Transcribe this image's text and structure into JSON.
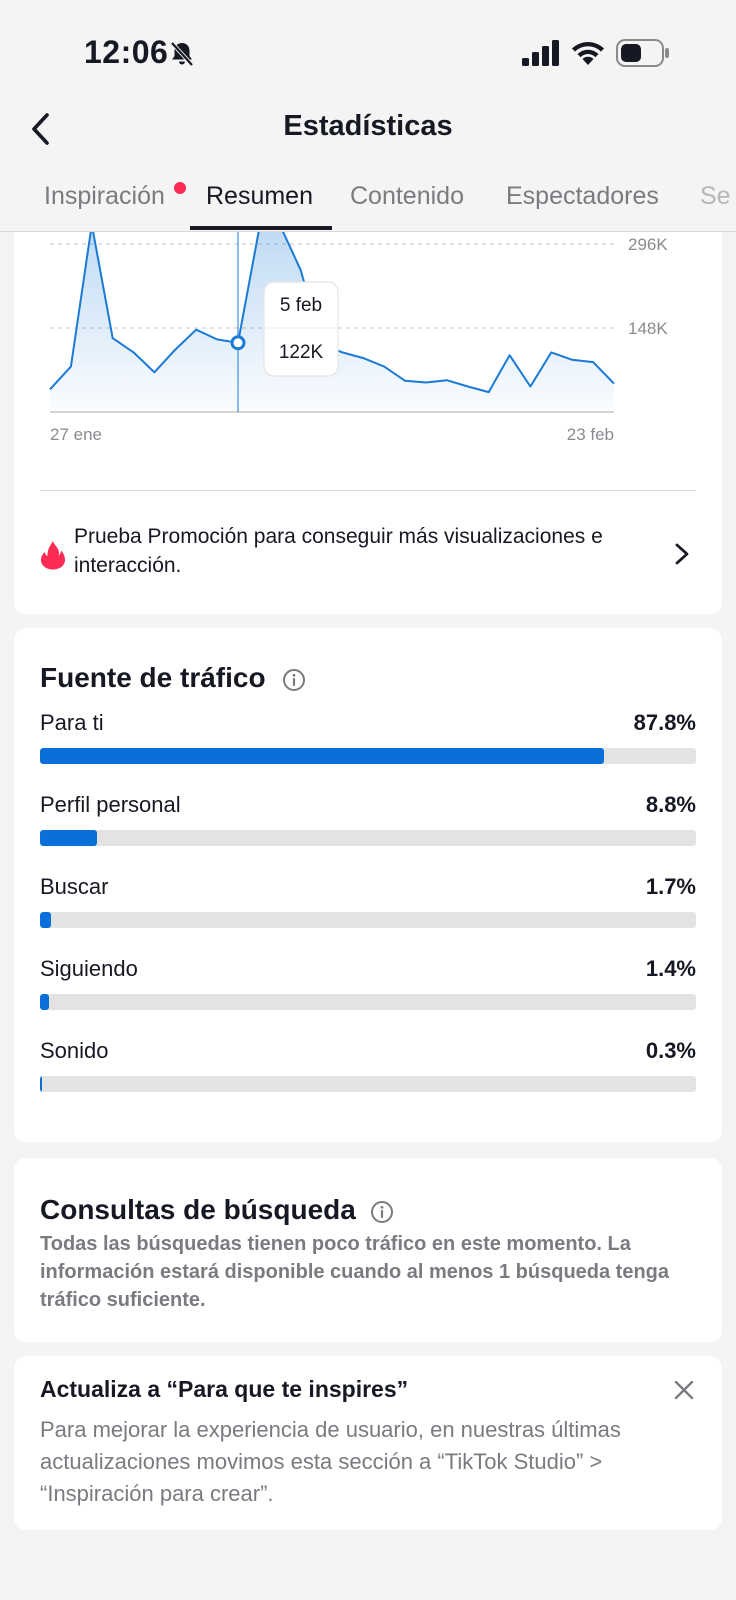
{
  "status_bar": {
    "time": "12:06",
    "icons": [
      "bell-slash-icon",
      "signal-icon",
      "wifi-icon",
      "battery-icon"
    ]
  },
  "header": {
    "title": "Estadísticas",
    "back_icon": "chevron-left-icon"
  },
  "tabs": [
    {
      "label": "Inspiración",
      "active": false,
      "badge": true
    },
    {
      "label": "Resumen",
      "active": true,
      "badge": false
    },
    {
      "label": "Contenido",
      "active": false,
      "badge": false
    },
    {
      "label": "Espectadores",
      "active": false,
      "badge": false
    },
    {
      "label": "Se",
      "active": false,
      "badge": false
    }
  ],
  "chart_data": {
    "type": "area",
    "x_start_label": "27 ene",
    "x_end_label": "23 feb",
    "y_ticks": [
      {
        "value": 296000,
        "label": "296K"
      },
      {
        "value": 148000,
        "label": "148K"
      }
    ],
    "ylim": [
      0,
      296000
    ],
    "values": [
      40000,
      80000,
      330000,
      130000,
      105000,
      70000,
      110000,
      145000,
      128000,
      122000,
      320000,
      330000,
      250000,
      120000,
      105000,
      95000,
      80000,
      55000,
      52000,
      56000,
      45000,
      35000,
      100000,
      45000,
      105000,
      92000,
      88000,
      50000
    ],
    "selected_index": 9,
    "tooltip": {
      "date": "5 feb",
      "value": "122K"
    },
    "grid": "horizontal-dashed",
    "line_color": "#1a7ad6"
  },
  "promo": {
    "text": "Prueba Promoción para conseguir más visualizaciones e interacción.",
    "icon": "fire-icon"
  },
  "traffic": {
    "title": "Fuente de tráfico",
    "items": [
      {
        "label": "Para ti",
        "pct_text": "87.8%",
        "value": 87.8
      },
      {
        "label": "Perfil personal",
        "pct_text": "8.8%",
        "value": 8.8
      },
      {
        "label": "Buscar",
        "pct_text": "1.7%",
        "value": 1.7
      },
      {
        "label": "Siguiendo",
        "pct_text": "1.4%",
        "value": 1.4
      },
      {
        "label": "Sonido",
        "pct_text": "0.3%",
        "value": 0.3
      }
    ]
  },
  "search": {
    "title": "Consultas de búsqueda",
    "description": "Todas las búsquedas tienen poco tráfico en este momento. La información estará disponible cuando al menos 1 búsqueda tenga tráfico suficiente."
  },
  "update": {
    "title": "Actualiza a “Para que te inspires”",
    "description": "Para mejorar la experiencia de usuario, en nuestras últimas actualizaciones movimos esta sección a “TikTok Studio” > “Inspiración para crear”."
  },
  "colors": {
    "accent": "#0a6fd8",
    "badge": "#fe2c55",
    "muted": "#7a7b80"
  }
}
